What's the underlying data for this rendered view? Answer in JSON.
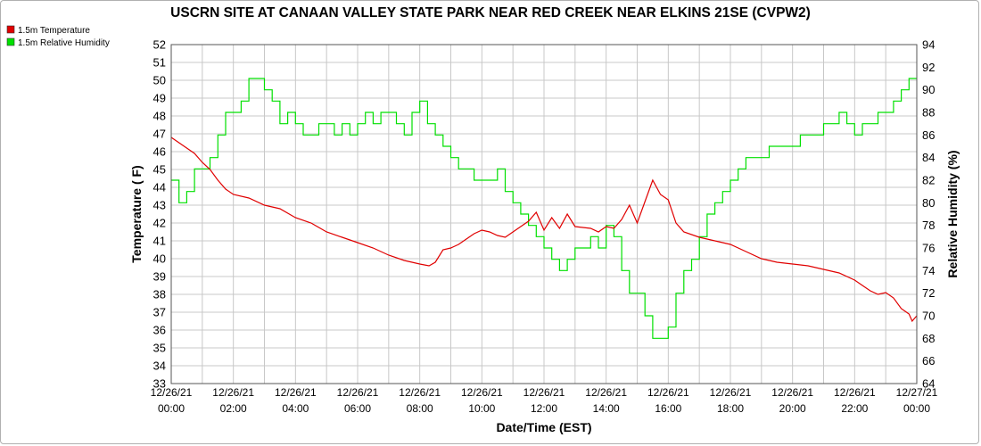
{
  "chart_data": {
    "type": "line",
    "title": "USCRN SITE AT CANAAN VALLEY STATE PARK NEAR RED CREEK NEAR ELKINS 21SE (CVPW2)",
    "xlabel": "Date/Time (EST)",
    "ylabel_left": "Temperature ( F)",
    "ylabel_right": "Relative Humidity (%)",
    "xlim_hours": [
      0,
      24
    ],
    "ylim_left": [
      33,
      52
    ],
    "ylim_right": [
      64,
      94
    ],
    "yticks_left": [
      "33",
      "34",
      "35",
      "36",
      "37",
      "38",
      "39",
      "40",
      "41",
      "42",
      "43",
      "44",
      "45",
      "46",
      "47",
      "48",
      "49",
      "50",
      "51",
      "52"
    ],
    "yticks_right": [
      "64",
      "66",
      "68",
      "70",
      "72",
      "74",
      "76",
      "78",
      "80",
      "82",
      "84",
      "86",
      "88",
      "90",
      "92",
      "94"
    ],
    "xticks": [
      {
        "date": "12/26/21",
        "time": "00:00"
      },
      {
        "date": "12/26/21",
        "time": "02:00"
      },
      {
        "date": "12/26/21",
        "time": "04:00"
      },
      {
        "date": "12/26/21",
        "time": "06:00"
      },
      {
        "date": "12/26/21",
        "time": "08:00"
      },
      {
        "date": "12/26/21",
        "time": "10:00"
      },
      {
        "date": "12/26/21",
        "time": "12:00"
      },
      {
        "date": "12/26/21",
        "time": "14:00"
      },
      {
        "date": "12/26/21",
        "time": "16:00"
      },
      {
        "date": "12/26/21",
        "time": "18:00"
      },
      {
        "date": "12/26/21",
        "time": "20:00"
      },
      {
        "date": "12/26/21",
        "time": "22:00"
      },
      {
        "date": "12/27/21",
        "time": "00:00"
      }
    ],
    "legend_placement": "top-left",
    "grid": true,
    "series": [
      {
        "name": "1.5m Temperature",
        "axis": "left",
        "color": "#e00000",
        "points": [
          [
            0,
            46.8
          ],
          [
            0.25,
            46.5
          ],
          [
            0.5,
            46.2
          ],
          [
            0.75,
            45.9
          ],
          [
            1.0,
            45.4
          ],
          [
            1.25,
            45.0
          ],
          [
            1.5,
            44.4
          ],
          [
            1.75,
            43.9
          ],
          [
            2.0,
            43.6
          ],
          [
            2.5,
            43.4
          ],
          [
            3.0,
            43.0
          ],
          [
            3.5,
            42.8
          ],
          [
            4.0,
            42.3
          ],
          [
            4.5,
            42.0
          ],
          [
            5.0,
            41.5
          ],
          [
            5.5,
            41.2
          ],
          [
            6.0,
            40.9
          ],
          [
            6.5,
            40.6
          ],
          [
            7.0,
            40.2
          ],
          [
            7.5,
            39.9
          ],
          [
            8.0,
            39.7
          ],
          [
            8.3,
            39.6
          ],
          [
            8.5,
            39.8
          ],
          [
            8.75,
            40.5
          ],
          [
            9.0,
            40.6
          ],
          [
            9.25,
            40.8
          ],
          [
            9.5,
            41.1
          ],
          [
            9.75,
            41.4
          ],
          [
            10.0,
            41.6
          ],
          [
            10.25,
            41.5
          ],
          [
            10.5,
            41.3
          ],
          [
            10.75,
            41.2
          ],
          [
            11.0,
            41.5
          ],
          [
            11.25,
            41.8
          ],
          [
            11.5,
            42.1
          ],
          [
            11.75,
            42.6
          ],
          [
            12.0,
            41.6
          ],
          [
            12.25,
            42.3
          ],
          [
            12.5,
            41.7
          ],
          [
            12.75,
            42.5
          ],
          [
            13.0,
            41.8
          ],
          [
            13.5,
            41.7
          ],
          [
            13.75,
            41.5
          ],
          [
            14.0,
            41.8
          ],
          [
            14.25,
            41.7
          ],
          [
            14.5,
            42.2
          ],
          [
            14.75,
            43.0
          ],
          [
            15.0,
            42.0
          ],
          [
            15.25,
            43.2
          ],
          [
            15.5,
            44.4
          ],
          [
            15.75,
            43.6
          ],
          [
            16.0,
            43.3
          ],
          [
            16.25,
            42.0
          ],
          [
            16.5,
            41.5
          ],
          [
            17.0,
            41.2
          ],
          [
            17.5,
            41.0
          ],
          [
            18.0,
            40.8
          ],
          [
            18.5,
            40.4
          ],
          [
            19.0,
            40.0
          ],
          [
            19.5,
            39.8
          ],
          [
            20.0,
            39.7
          ],
          [
            20.5,
            39.6
          ],
          [
            21.0,
            39.4
          ],
          [
            21.5,
            39.2
          ],
          [
            22.0,
            38.8
          ],
          [
            22.25,
            38.5
          ],
          [
            22.5,
            38.2
          ],
          [
            22.75,
            38.0
          ],
          [
            23.0,
            38.1
          ],
          [
            23.25,
            37.8
          ],
          [
            23.5,
            37.2
          ],
          [
            23.75,
            36.9
          ],
          [
            23.85,
            36.5
          ],
          [
            24.0,
            36.8
          ]
        ]
      },
      {
        "name": "1.5m Relative Humidity",
        "axis": "right",
        "color": "#00e000",
        "points": [
          [
            0,
            82
          ],
          [
            0.25,
            80
          ],
          [
            0.5,
            81
          ],
          [
            0.75,
            83
          ],
          [
            1.0,
            83
          ],
          [
            1.25,
            84
          ],
          [
            1.5,
            86
          ],
          [
            1.75,
            88
          ],
          [
            2.0,
            88
          ],
          [
            2.25,
            89
          ],
          [
            2.5,
            91
          ],
          [
            2.75,
            91
          ],
          [
            3.0,
            90
          ],
          [
            3.25,
            89
          ],
          [
            3.5,
            87
          ],
          [
            3.75,
            88
          ],
          [
            4.0,
            87
          ],
          [
            4.25,
            86
          ],
          [
            4.5,
            86
          ],
          [
            4.75,
            87
          ],
          [
            5.0,
            87
          ],
          [
            5.25,
            86
          ],
          [
            5.5,
            87
          ],
          [
            5.75,
            86
          ],
          [
            6.0,
            87
          ],
          [
            6.25,
            88
          ],
          [
            6.5,
            87
          ],
          [
            6.75,
            88
          ],
          [
            7.0,
            88
          ],
          [
            7.25,
            87
          ],
          [
            7.5,
            86
          ],
          [
            7.75,
            88
          ],
          [
            8.0,
            89
          ],
          [
            8.25,
            87
          ],
          [
            8.5,
            86
          ],
          [
            8.75,
            85
          ],
          [
            9.0,
            84
          ],
          [
            9.25,
            83
          ],
          [
            9.5,
            83
          ],
          [
            9.75,
            82
          ],
          [
            10.0,
            82
          ],
          [
            10.25,
            82
          ],
          [
            10.5,
            83
          ],
          [
            10.75,
            81
          ],
          [
            11.0,
            80
          ],
          [
            11.25,
            79
          ],
          [
            11.5,
            78
          ],
          [
            11.75,
            77
          ],
          [
            12.0,
            76
          ],
          [
            12.25,
            75
          ],
          [
            12.5,
            74
          ],
          [
            12.75,
            75
          ],
          [
            13.0,
            76
          ],
          [
            13.25,
            76
          ],
          [
            13.5,
            77
          ],
          [
            13.75,
            76
          ],
          [
            14.0,
            78
          ],
          [
            14.25,
            77
          ],
          [
            14.5,
            74
          ],
          [
            14.75,
            72
          ],
          [
            15.0,
            72
          ],
          [
            15.25,
            70
          ],
          [
            15.5,
            68
          ],
          [
            15.75,
            68
          ],
          [
            16.0,
            69
          ],
          [
            16.25,
            72
          ],
          [
            16.5,
            74
          ],
          [
            16.75,
            75
          ],
          [
            17.0,
            77
          ],
          [
            17.25,
            79
          ],
          [
            17.5,
            80
          ],
          [
            17.75,
            81
          ],
          [
            18.0,
            82
          ],
          [
            18.25,
            83
          ],
          [
            18.5,
            84
          ],
          [
            18.75,
            84
          ],
          [
            19.0,
            84
          ],
          [
            19.25,
            85
          ],
          [
            19.5,
            85
          ],
          [
            19.75,
            85
          ],
          [
            20.0,
            85
          ],
          [
            20.25,
            86
          ],
          [
            20.5,
            86
          ],
          [
            20.75,
            86
          ],
          [
            21.0,
            87
          ],
          [
            21.25,
            87
          ],
          [
            21.5,
            88
          ],
          [
            21.75,
            87
          ],
          [
            22.0,
            86
          ],
          [
            22.25,
            87
          ],
          [
            22.5,
            87
          ],
          [
            22.75,
            88
          ],
          [
            23.0,
            88
          ],
          [
            23.25,
            89
          ],
          [
            23.5,
            90
          ],
          [
            23.75,
            91
          ],
          [
            24.0,
            91
          ]
        ]
      }
    ]
  }
}
